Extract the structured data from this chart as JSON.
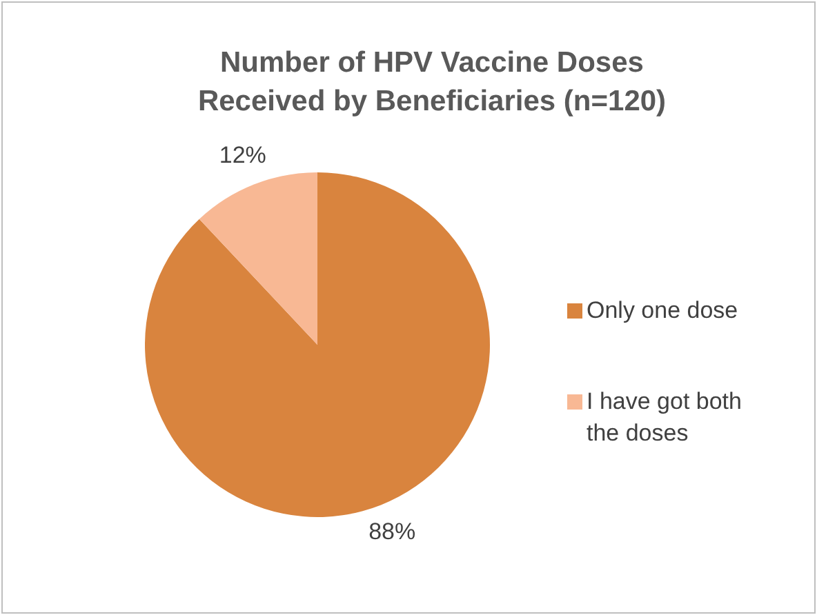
{
  "chart_data": {
    "type": "pie",
    "title": "Number of HPV Vaccine Doses Received by Beneficiaries (n=120)",
    "categories": [
      "Only one dose",
      "I have got both the doses"
    ],
    "values": [
      88,
      12
    ],
    "colors": [
      "#d9843e",
      "#f8b894"
    ],
    "value_labels": [
      "88%",
      "12%"
    ],
    "legend": "right"
  }
}
